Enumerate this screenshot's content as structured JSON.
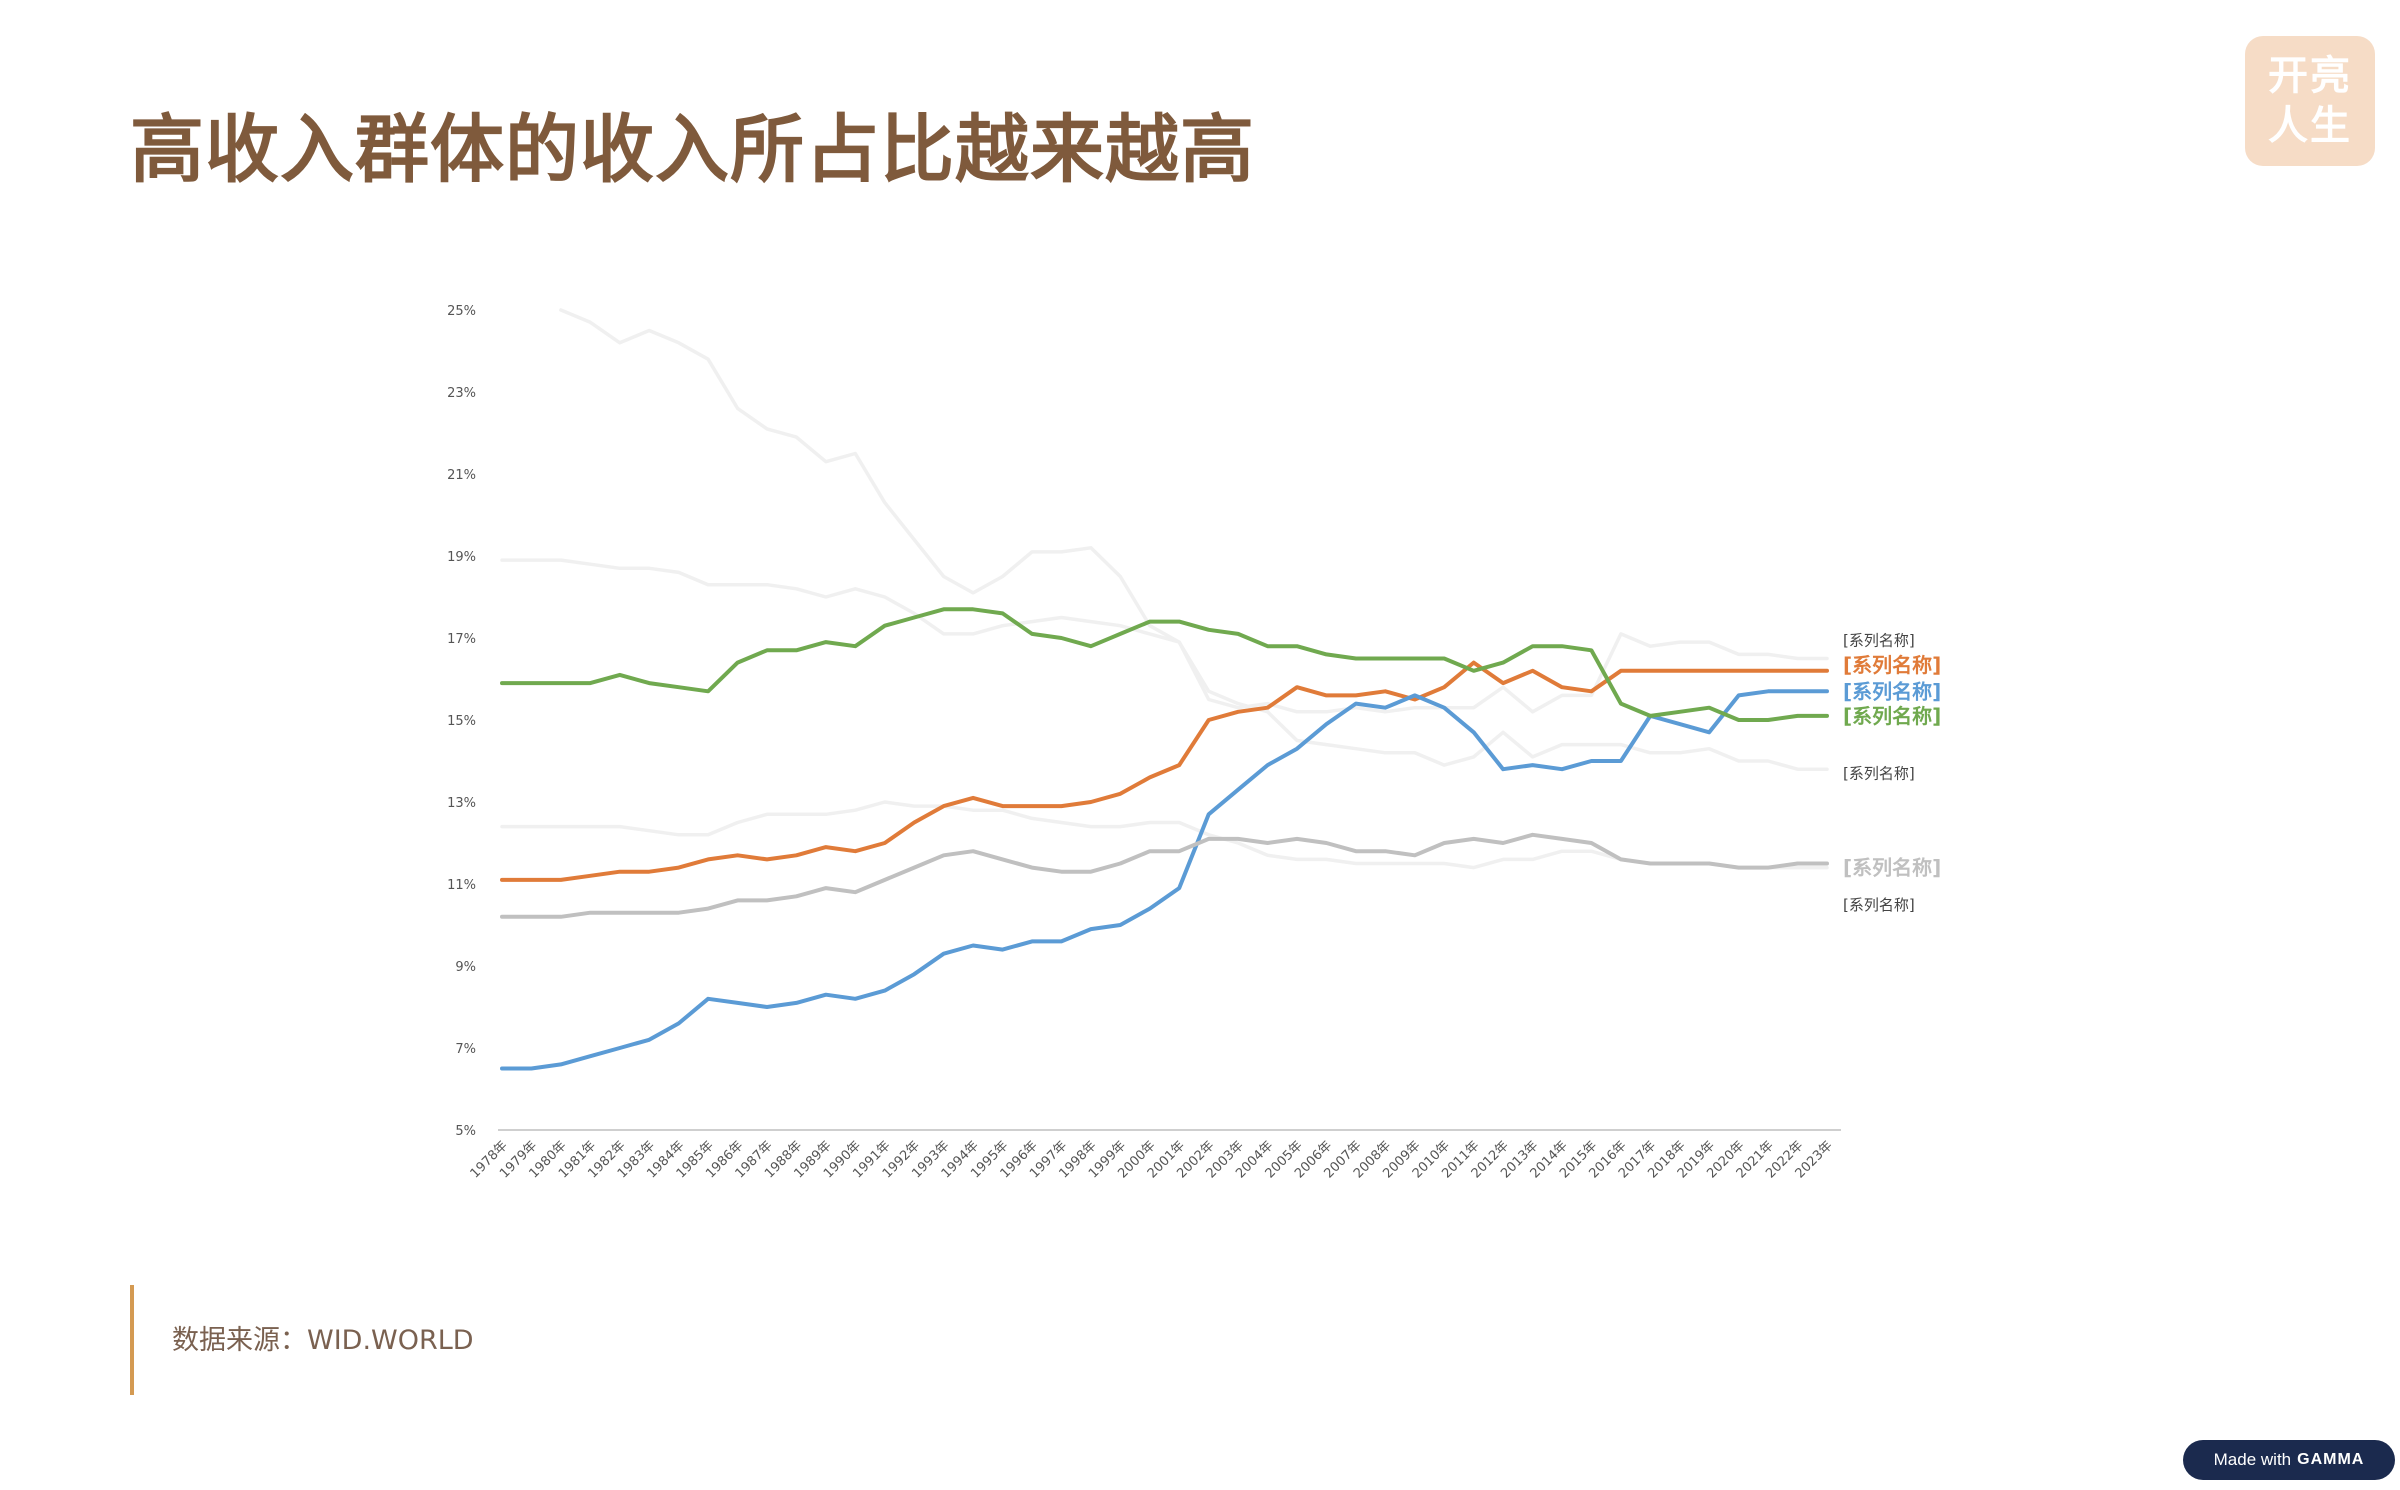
{
  "page": {
    "title": "高收入群体的收入所占比越来越高"
  },
  "logo": {
    "line1": "开亮",
    "line2": "人生"
  },
  "source": {
    "text": "数据来源：WID.WORLD"
  },
  "badge": {
    "prefix": "Made with",
    "brand": "GAMMA"
  },
  "chart_data": {
    "type": "line",
    "title": "",
    "xlabel": "",
    "ylabel": "",
    "ylim": [
      5,
      25
    ],
    "yticks": [
      "5%",
      "7%",
      "9%",
      "11%",
      "13%",
      "15%",
      "17%",
      "19%",
      "21%",
      "23%",
      "25%"
    ],
    "categories": [
      "1978年",
      "1979年",
      "1980年",
      "1981年",
      "1982年",
      "1983年",
      "1984年",
      "1985年",
      "1986年",
      "1987年",
      "1988年",
      "1989年",
      "1990年",
      "1991年",
      "1992年",
      "1993年",
      "1994年",
      "1995年",
      "1996年",
      "1997年",
      "1998年",
      "1999年",
      "2000年",
      "2001年",
      "2002年",
      "2003年",
      "2004年",
      "2005年",
      "2006年",
      "2007年",
      "2008年",
      "2009年",
      "2010年",
      "2011年",
      "2012年",
      "2013年",
      "2014年",
      "2015年",
      "2016年",
      "2017年",
      "2018年",
      "2019年",
      "2020年",
      "2021年",
      "2022年",
      "2023年"
    ],
    "grid": false,
    "legend": "end-of-line labels",
    "series": [
      {
        "label": "[系列名称]",
        "color": "#f0f0f0",
        "highlight": false,
        "values": [
          null,
          null,
          25.0,
          24.7,
          24.2,
          24.5,
          24.2,
          23.8,
          22.6,
          22.1,
          21.9,
          21.3,
          21.5,
          20.3,
          19.4,
          18.5,
          18.1,
          18.5,
          19.1,
          19.1,
          19.2,
          18.5,
          17.3,
          16.9,
          15.7,
          15.4,
          15.2,
          14.5,
          14.4,
          14.3,
          14.2,
          14.2,
          13.9,
          14.1,
          14.7,
          14.1,
          14.4,
          14.4,
          14.4,
          14.2,
          14.2,
          14.3,
          14.0,
          14.0,
          13.8,
          13.8
        ]
      },
      {
        "label": "[系列名称]",
        "color": "#f0f0f0",
        "highlight": false,
        "values": [
          18.9,
          18.9,
          18.9,
          18.8,
          18.7,
          18.7,
          18.6,
          18.3,
          18.3,
          18.3,
          18.2,
          18.0,
          18.2,
          18.0,
          17.6,
          17.1,
          17.1,
          17.3,
          17.4,
          17.5,
          17.4,
          17.3,
          17.1,
          16.9,
          15.5,
          15.3,
          15.4,
          15.2,
          15.2,
          15.3,
          15.2,
          15.3,
          15.3,
          15.3,
          15.8,
          15.2,
          15.6,
          15.6,
          17.1,
          16.8,
          16.9,
          16.9,
          16.6,
          16.6,
          16.5,
          16.5
        ]
      },
      {
        "label": "[系列名称]",
        "color": "#f0f0f0",
        "highlight": false,
        "values": [
          12.4,
          12.4,
          12.4,
          12.4,
          12.4,
          12.3,
          12.2,
          12.2,
          12.5,
          12.7,
          12.7,
          12.7,
          12.8,
          13.0,
          12.9,
          12.9,
          12.8,
          12.8,
          12.6,
          12.5,
          12.4,
          12.4,
          12.5,
          12.5,
          12.2,
          12.0,
          11.7,
          11.6,
          11.6,
          11.5,
          11.5,
          11.5,
          11.5,
          11.4,
          11.6,
          11.6,
          11.8,
          11.8,
          11.6,
          11.5,
          11.5,
          11.5,
          11.4,
          11.4,
          11.4,
          11.4
        ]
      },
      {
        "label": "[系列名称]",
        "color": "#e07b39",
        "highlight": true,
        "values": [
          11.1,
          11.1,
          11.1,
          11.2,
          11.3,
          11.3,
          11.4,
          11.6,
          11.7,
          11.6,
          11.7,
          11.9,
          11.8,
          12.0,
          12.5,
          12.9,
          13.1,
          12.9,
          12.9,
          12.9,
          13.0,
          13.2,
          13.6,
          13.9,
          15.0,
          15.2,
          15.3,
          15.8,
          15.6,
          15.6,
          15.7,
          15.5,
          15.8,
          16.4,
          15.9,
          16.2,
          15.8,
          15.7,
          16.2,
          16.2,
          16.2,
          16.2,
          16.2,
          16.2,
          16.2,
          16.2
        ]
      },
      {
        "label": "[系列名称]",
        "color": "#5b9bd5",
        "highlight": true,
        "values": [
          6.5,
          6.5,
          6.6,
          6.8,
          7.0,
          7.2,
          7.6,
          8.2,
          8.1,
          8.0,
          8.1,
          8.3,
          8.2,
          8.4,
          8.8,
          9.3,
          9.5,
          9.4,
          9.6,
          9.6,
          9.9,
          10.0,
          10.4,
          10.9,
          12.7,
          13.3,
          13.9,
          14.3,
          14.9,
          15.4,
          15.3,
          15.6,
          15.3,
          14.7,
          13.8,
          13.9,
          13.8,
          14.0,
          14.0,
          15.1,
          14.9,
          14.7,
          15.6,
          15.7,
          15.7,
          15.7
        ]
      },
      {
        "label": "[系列名称]",
        "color": "#70a94f",
        "highlight": true,
        "values": [
          15.9,
          15.9,
          15.9,
          15.9,
          16.1,
          15.9,
          15.8,
          15.7,
          16.4,
          16.7,
          16.7,
          16.9,
          16.8,
          17.3,
          17.5,
          17.7,
          17.7,
          17.6,
          17.1,
          17.0,
          16.8,
          17.1,
          17.4,
          17.4,
          17.2,
          17.1,
          16.8,
          16.8,
          16.6,
          16.5,
          16.5,
          16.5,
          16.5,
          16.2,
          16.4,
          16.8,
          16.8,
          16.7,
          15.4,
          15.1,
          15.2,
          15.3,
          15.0,
          15.0,
          15.1,
          15.1
        ]
      },
      {
        "label": "[系列名称]",
        "color": "#c0c0c0",
        "highlight": true,
        "values": [
          10.2,
          10.2,
          10.2,
          10.3,
          10.3,
          10.3,
          10.3,
          10.4,
          10.6,
          10.6,
          10.7,
          10.9,
          10.8,
          11.1,
          11.4,
          11.7,
          11.8,
          11.6,
          11.4,
          11.3,
          11.3,
          11.5,
          11.8,
          11.8,
          12.1,
          12.1,
          12.0,
          12.1,
          12.0,
          11.8,
          11.8,
          11.7,
          12.0,
          12.1,
          12.0,
          12.2,
          12.1,
          12.0,
          11.6,
          11.5,
          11.5,
          11.5,
          11.4,
          11.4,
          11.5,
          11.5
        ]
      }
    ],
    "end_labels": [
      {
        "text": "[系列名称]",
        "color": "#444444",
        "size": 15,
        "bold": false,
        "y": 16.95
      },
      {
        "text": "[系列名称]",
        "color": "#e07b39",
        "size": 20,
        "bold": true,
        "y": 16.35
      },
      {
        "text": "[系列名称]",
        "color": "#5b9bd5",
        "size": 20,
        "bold": true,
        "y": 15.7
      },
      {
        "text": "[系列名称]",
        "color": "#70a94f",
        "size": 20,
        "bold": true,
        "y": 15.1
      },
      {
        "text": "[系列名称]",
        "color": "#444444",
        "size": 15,
        "bold": false,
        "y": 13.7
      },
      {
        "text": "[系列名称]",
        "color": "#c0c0c0",
        "size": 20,
        "bold": true,
        "y": 11.4
      },
      {
        "text": "[系列名称]",
        "color": "#444444",
        "size": 15,
        "bold": false,
        "y": 10.5
      }
    ]
  }
}
